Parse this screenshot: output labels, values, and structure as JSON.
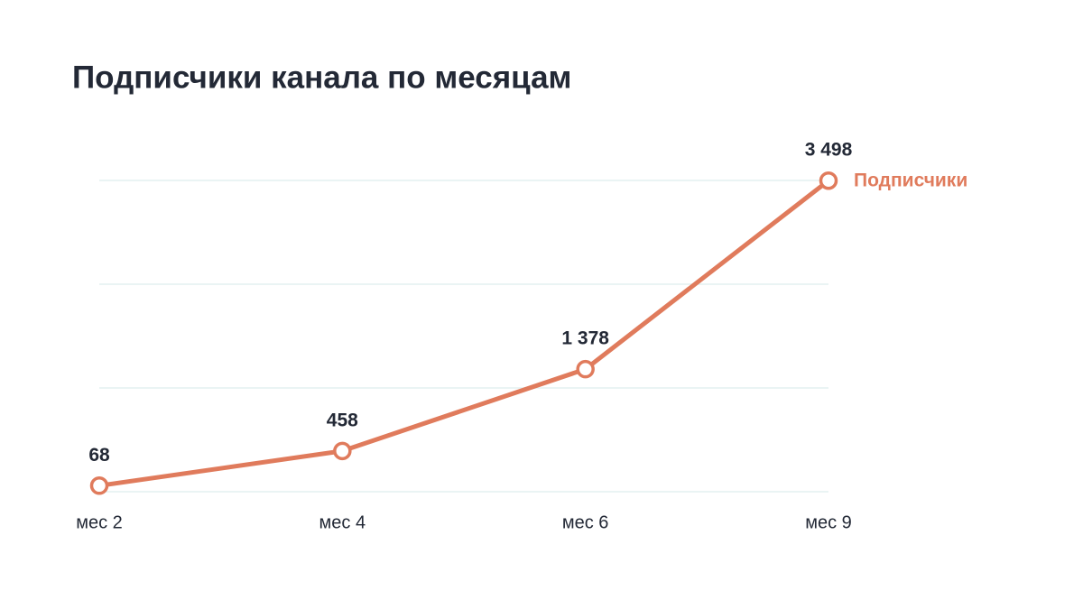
{
  "chart_data": {
    "type": "line",
    "title": "Подписчики канала по месяцам",
    "categories": [
      "мес 2",
      "мес 4",
      "мес 6",
      "мес 9"
    ],
    "series": [
      {
        "name": "Подписчики",
        "color": "#e07b5c",
        "values": [
          68,
          458,
          1378,
          3498
        ],
        "value_labels": [
          "68",
          "458",
          "1 378",
          "3 498"
        ]
      }
    ],
    "ylim": [
      0,
      3500
    ],
    "grid_lines": [
      0,
      1166.7,
      2333.3,
      3500
    ],
    "grid": true
  }
}
